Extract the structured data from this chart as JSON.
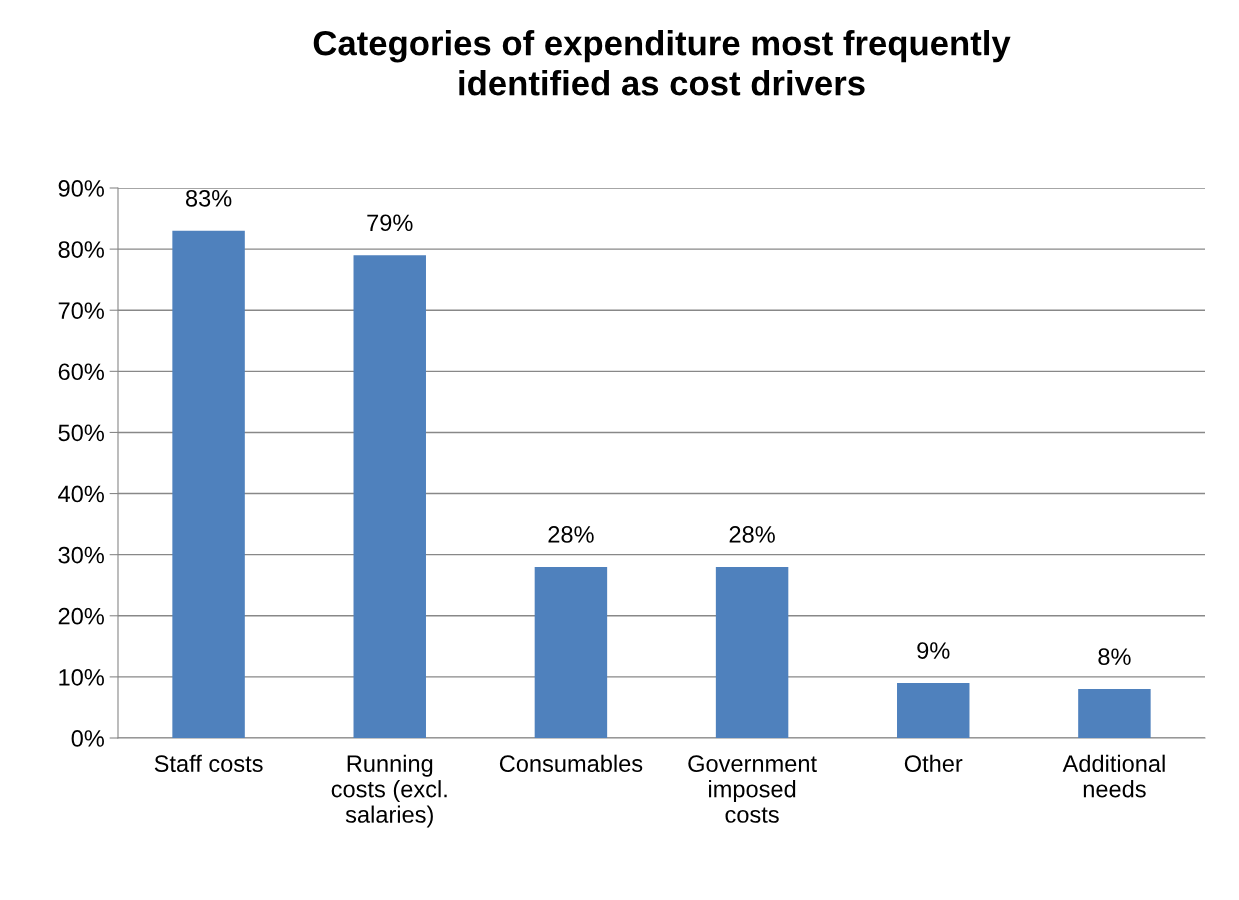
{
  "chart_data": {
    "type": "bar",
    "title": "Categories of expenditure most frequently\nidentified as cost drivers",
    "categories": [
      "Staff costs",
      "Running\ncosts (excl.\nsalaries)",
      "Consumables",
      "Government\nimposed\ncosts",
      "Other",
      "Additional\nneeds"
    ],
    "values": [
      83,
      79,
      28,
      28,
      9,
      8
    ],
    "value_labels": [
      "83%",
      "79%",
      "28%",
      "28%",
      "9%",
      "8%"
    ],
    "color": "#4f81bd",
    "ylim": [
      0,
      90
    ],
    "yticks": [
      {
        "value": 0,
        "label": "0%"
      },
      {
        "value": 10,
        "label": "10%"
      },
      {
        "value": 20,
        "label": "20%"
      },
      {
        "value": 30,
        "label": "30%"
      },
      {
        "value": 40,
        "label": "40%"
      },
      {
        "value": 50,
        "label": "50%"
      },
      {
        "value": 60,
        "label": "60%"
      },
      {
        "value": 70,
        "label": "70%"
      },
      {
        "value": 80,
        "label": "80%"
      },
      {
        "value": 90,
        "label": "90%"
      }
    ],
    "grid": "y",
    "legend": false
  }
}
